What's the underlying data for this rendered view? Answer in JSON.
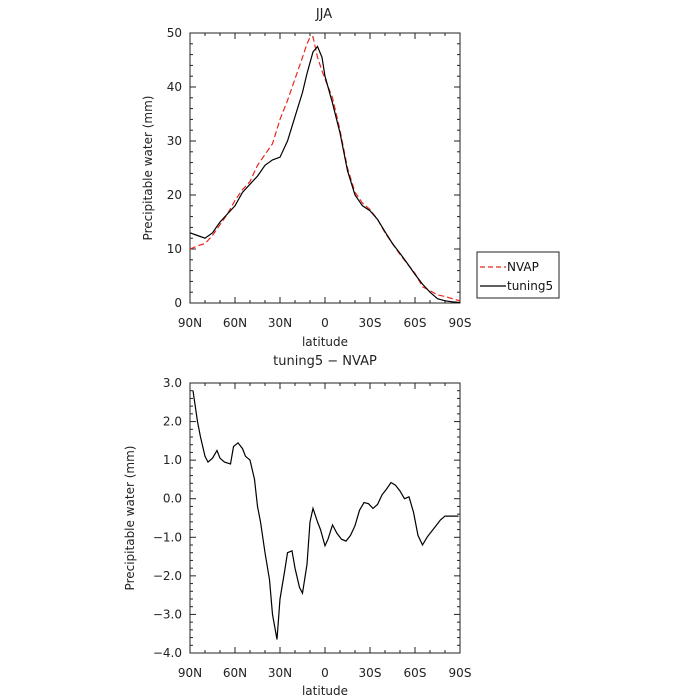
{
  "colors": {
    "obs": "#e8281e",
    "model": "#000000",
    "axis": "#222222"
  },
  "chart_data": [
    {
      "type": "line",
      "title": "JJA",
      "xlabel": "latitude",
      "ylabel": "Precipitable water (mm)",
      "xlim": [
        -90,
        90
      ],
      "ylim": [
        0,
        50
      ],
      "xticks": [
        -90,
        -60,
        -30,
        0,
        30,
        60,
        90
      ],
      "xtick_labels": [
        "90N",
        "60N",
        "30N",
        "0",
        "30S",
        "60S",
        "90S"
      ],
      "yticks": [
        0,
        10,
        20,
        30,
        40,
        50
      ],
      "ytick_labels": [
        "0",
        "10",
        "20",
        "30",
        "40",
        "50"
      ],
      "legend_position": "right",
      "series": [
        {
          "name": "NVAP",
          "style": "dashed",
          "x": [
            -90,
            -85,
            -80,
            -75,
            -70,
            -65,
            -60,
            -55,
            -50,
            -45,
            -40,
            -35,
            -30,
            -25,
            -20,
            -15,
            -12,
            -10,
            -8,
            -5,
            -2,
            0,
            5,
            10,
            15,
            20,
            25,
            30,
            35,
            40,
            45,
            50,
            55,
            60,
            65,
            70,
            75,
            80,
            85,
            90
          ],
          "y": [
            10,
            10.6,
            11,
            12.5,
            14.5,
            16.5,
            19,
            21,
            22.5,
            25.5,
            27.5,
            29.5,
            34,
            37.5,
            41.5,
            45.5,
            48,
            49.2,
            49.3,
            45.5,
            43,
            41.5,
            38,
            32,
            25,
            20.5,
            18.5,
            17.3,
            15.5,
            13,
            11,
            9,
            7.2,
            5.5,
            3,
            2.3,
            1.5,
            1.2,
            0.8,
            0.4
          ]
        },
        {
          "name": "tuning5",
          "style": "solid",
          "x": [
            -90,
            -85,
            -80,
            -75,
            -70,
            -65,
            -60,
            -55,
            -50,
            -45,
            -40,
            -35,
            -30,
            -25,
            -20,
            -15,
            -12,
            -10,
            -8,
            -5,
            -2,
            0,
            5,
            10,
            15,
            20,
            25,
            30,
            35,
            40,
            45,
            50,
            55,
            60,
            65,
            70,
            75,
            80,
            85,
            90
          ],
          "y": [
            13,
            12.5,
            12,
            13,
            15,
            16.5,
            18,
            20.5,
            22,
            23.5,
            25.5,
            26.5,
            27,
            30,
            34.5,
            39,
            42.5,
            44.5,
            46.5,
            47.5,
            45.5,
            42,
            37,
            31.5,
            24.5,
            20,
            18,
            17.1,
            15.5,
            13.2,
            11,
            9.2,
            7.3,
            5.3,
            3.5,
            2,
            0.8,
            0.4,
            0.2,
            0.1
          ]
        }
      ]
    },
    {
      "type": "line",
      "title": "tuning5 − NVAP",
      "xlabel": "latitude",
      "ylabel": "Precipitable water (mm)",
      "xlim": [
        -90,
        90
      ],
      "ylim": [
        -4,
        3
      ],
      "xticks": [
        -90,
        -60,
        -30,
        0,
        30,
        60,
        90
      ],
      "xtick_labels": [
        "90N",
        "60N",
        "30N",
        "0",
        "30S",
        "60S",
        "90S"
      ],
      "yticks": [
        -4,
        -3,
        -2,
        -1,
        0,
        1,
        2,
        3
      ],
      "ytick_labels": [
        "−4.0",
        "−3.0",
        "−2.0",
        "−1.0",
        "0.0",
        "1.0",
        "2.0",
        "3.0"
      ],
      "series": [
        {
          "style": "solid",
          "x": [
            -88,
            -85,
            -83,
            -80,
            -78,
            -75,
            -72,
            -70,
            -67,
            -63,
            -61,
            -58,
            -55,
            -53,
            -50,
            -47,
            -45,
            -43,
            -40,
            -37,
            -35,
            -32,
            -30,
            -27,
            -25,
            -22,
            -20,
            -17,
            -15,
            -12,
            -10,
            -8,
            -5,
            -3,
            0,
            2,
            5,
            8,
            11,
            14,
            17,
            20,
            23,
            26,
            29,
            32,
            35,
            38,
            41,
            44,
            47,
            50,
            53,
            56,
            59,
            62,
            65,
            68,
            71,
            74,
            77,
            80,
            83,
            86,
            89
          ],
          "y": [
            2.8,
            2.0,
            1.6,
            1.1,
            0.95,
            1.05,
            1.25,
            1.05,
            0.95,
            0.9,
            1.35,
            1.45,
            1.3,
            1.1,
            1.0,
            0.5,
            -0.2,
            -0.6,
            -1.4,
            -2.1,
            -3.0,
            -3.65,
            -2.6,
            -1.9,
            -1.4,
            -1.35,
            -1.8,
            -2.3,
            -2.45,
            -1.7,
            -0.6,
            -0.25,
            -0.6,
            -0.8,
            -1.22,
            -1.05,
            -0.68,
            -0.9,
            -1.05,
            -1.1,
            -0.95,
            -0.7,
            -0.3,
            -0.1,
            -0.13,
            -0.25,
            -0.15,
            0.1,
            0.25,
            0.42,
            0.35,
            0.2,
            0.0,
            0.05,
            -0.35,
            -0.95,
            -1.2,
            -1.0,
            -0.85,
            -0.7,
            -0.55,
            -0.45,
            -0.45,
            -0.45,
            -0.45
          ]
        }
      ]
    }
  ]
}
